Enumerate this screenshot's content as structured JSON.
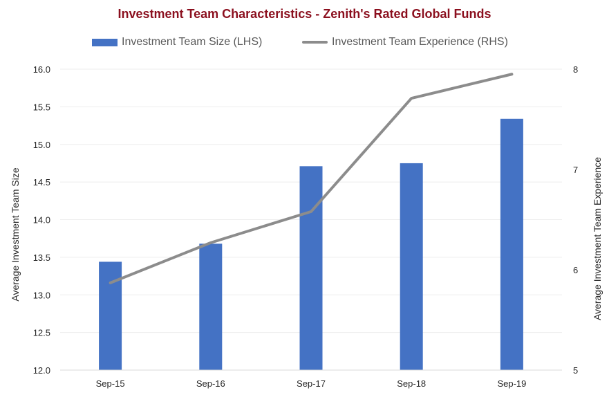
{
  "colors": {
    "title": "#8b0f1e",
    "bar": "#4472c4",
    "line": "#8c8c8c",
    "grid": "#ededed"
  },
  "chart_data": {
    "type": "bar",
    "title": "Investment Team Characteristics - Zenith's Rated Global Funds",
    "categories": [
      "Sep-15",
      "Sep-16",
      "Sep-17",
      "Sep-18",
      "Sep-19"
    ],
    "series": [
      {
        "name": "Investment Team Size (LHS)",
        "type": "bar",
        "axis": "left",
        "values": [
          13.44,
          13.68,
          14.71,
          14.75,
          15.34
        ]
      },
      {
        "name": "Investment Team Experience (RHS)",
        "type": "line",
        "axis": "right",
        "values": [
          5.87,
          6.27,
          6.58,
          7.71,
          7.95
        ]
      }
    ],
    "ylabel": "Average Investment Team Size",
    "ylabel_right": "Average Investment Team Experience",
    "ylim": [
      12.0,
      16.0
    ],
    "ylim_right": [
      5,
      8
    ],
    "yticks": [
      "12.0",
      "12.5",
      "13.0",
      "13.5",
      "14.0",
      "14.5",
      "15.0",
      "15.5",
      "16.0"
    ],
    "yticks_right": [
      "5",
      "6",
      "7",
      "8"
    ],
    "grid": true,
    "legend_position": "top"
  }
}
